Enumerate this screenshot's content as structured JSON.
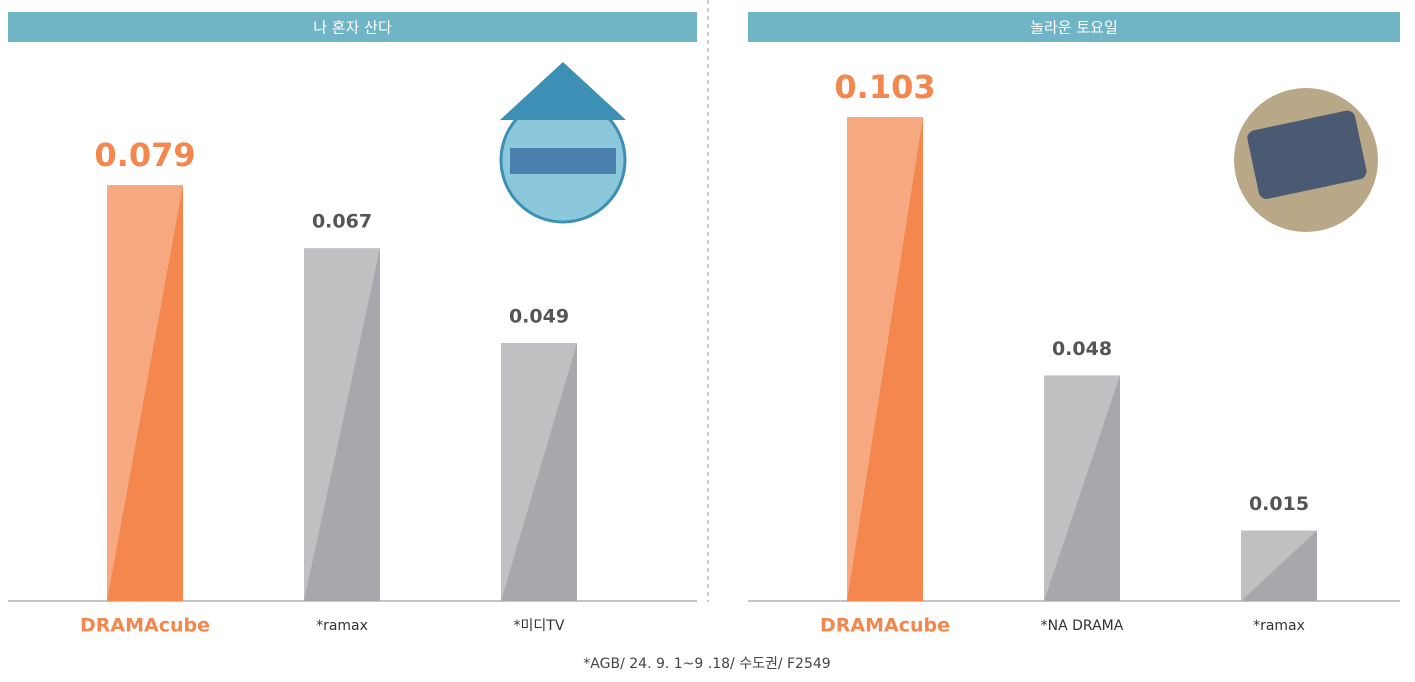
{
  "chart_data": [
    {
      "type": "bar",
      "title": "나 혼자 산다",
      "categories": [
        "DRAMAcube",
        "*ramax",
        "*미디TV"
      ],
      "values": [
        0.079,
        0.067,
        0.049
      ],
      "colors": [
        "#f3874e",
        "#a7a8ab",
        "#a7a8ab"
      ]
    },
    {
      "type": "bar",
      "title": "놀라운 토요일",
      "categories": [
        "DRAMAcube",
        "*NA DRAMA",
        "*ramax"
      ],
      "values": [
        0.103,
        0.048,
        0.015
      ],
      "colors": [
        "#f3874e",
        "#a7a8ab",
        "#a7a8ab"
      ]
    }
  ],
  "footnote": "*AGB/ 24. 9. 1~9 .18/ 수도권/ F2549"
}
